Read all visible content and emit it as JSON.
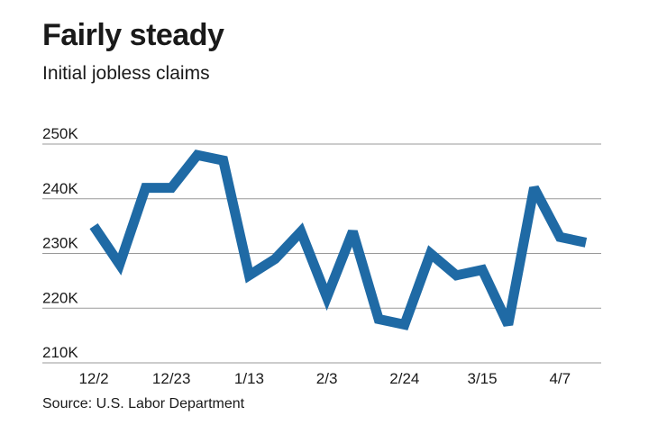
{
  "chart_data": {
    "type": "line",
    "title": "Fairly steady",
    "subtitle": "Initial jobless claims",
    "source": "Source: U.S. Labor Department",
    "color": "#1f6aa5",
    "ylim": [
      210000,
      250000
    ],
    "yticks": [
      {
        "value": 250000,
        "label": "250K"
      },
      {
        "value": 240000,
        "label": "240K"
      },
      {
        "value": 230000,
        "label": "230K"
      },
      {
        "value": 220000,
        "label": "220K"
      },
      {
        "value": 210000,
        "label": "210K"
      }
    ],
    "xticks": [
      {
        "index": 0,
        "label": "12/2"
      },
      {
        "index": 3,
        "label": "12/23"
      },
      {
        "index": 6,
        "label": "1/13"
      },
      {
        "index": 9,
        "label": "2/3"
      },
      {
        "index": 12,
        "label": "2/24"
      },
      {
        "index": 15,
        "label": "3/15"
      },
      {
        "index": 18,
        "label": "4/7"
      }
    ],
    "values": [
      235000,
      228000,
      242000,
      242000,
      248000,
      247000,
      226000,
      229000,
      234000,
      222000,
      234000,
      218000,
      217000,
      230000,
      226000,
      227000,
      217000,
      242000,
      233000,
      232000
    ],
    "grid": true
  }
}
